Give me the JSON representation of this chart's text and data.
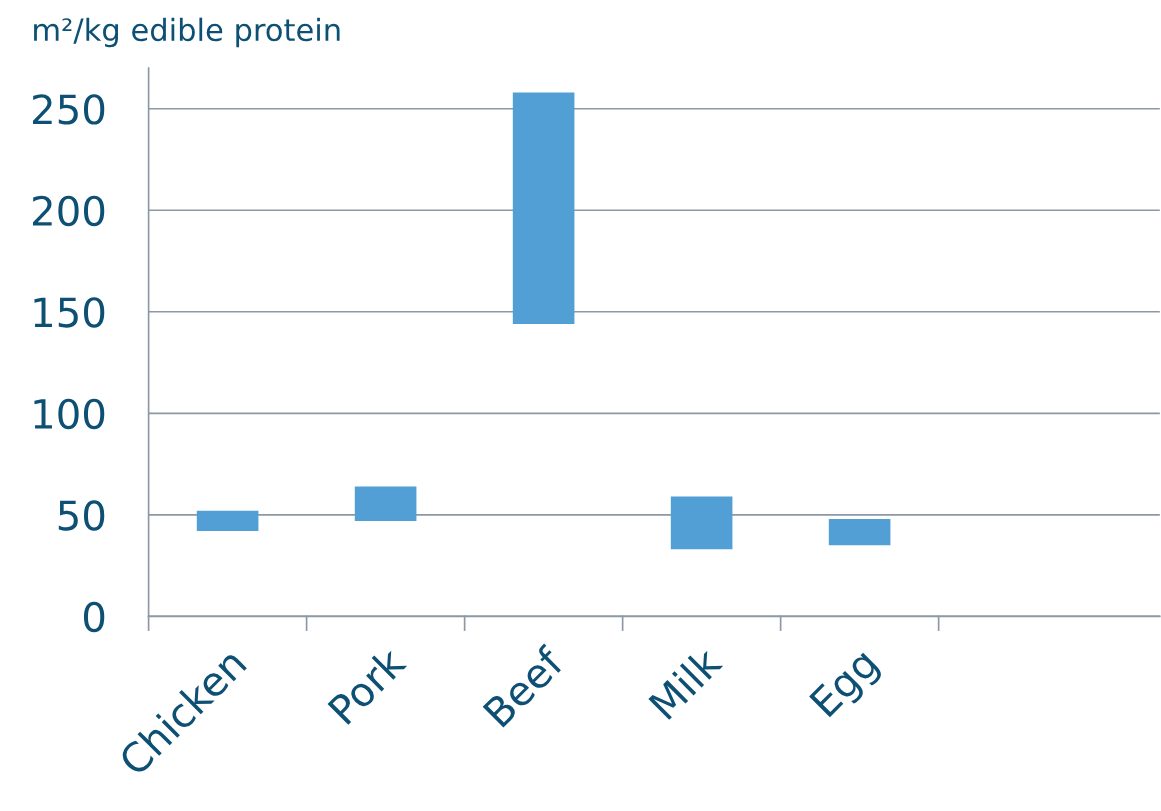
{
  "chart_data": {
    "type": "bar",
    "ylabel": "m²/kg edible protein",
    "categories": [
      "Chicken",
      "Pork",
      "Beef",
      "Milk",
      "Egg",
      null
    ],
    "values": [
      10,
      17,
      114,
      26,
      13,
      null
    ],
    "base": [
      42,
      47,
      144,
      33,
      35,
      null
    ],
    "color": "#529fd6",
    "ylim": [
      0,
      270
    ],
    "yticks": [
      0,
      50,
      100,
      150,
      200,
      250
    ],
    "grid": "y"
  }
}
